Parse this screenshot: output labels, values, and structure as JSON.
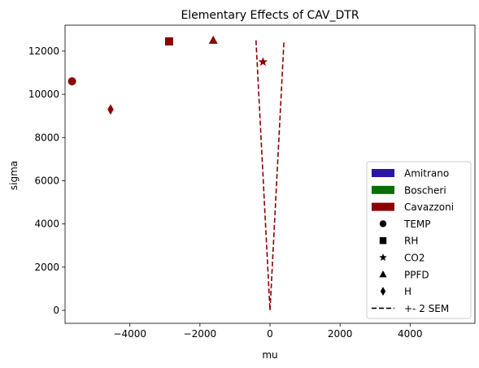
{
  "chart_data": {
    "type": "scatter",
    "title": "Elementary Effects of CAV_DTR",
    "xlabel": "mu",
    "ylabel": "sigma",
    "xlim": [
      -5850,
      5850
    ],
    "ylim": [
      -600,
      13200
    ],
    "xticks": [
      -4000,
      -2000,
      0,
      2000,
      4000
    ],
    "xtick_labels": [
      "−4000",
      "−2000",
      "0",
      "2000",
      "4000"
    ],
    "yticks": [
      0,
      2000,
      4000,
      6000,
      8000,
      10000,
      12000
    ],
    "ytick_labels": [
      "0",
      "2000",
      "4000",
      "6000",
      "8000",
      "10000",
      "12000"
    ],
    "grid": false,
    "color": "#8b0000",
    "points": [
      {
        "name": "TEMP",
        "marker": "circle",
        "x": -5650,
        "y": 10600
      },
      {
        "name": "RH",
        "marker": "square",
        "x": -2880,
        "y": 12450
      },
      {
        "name": "CO2",
        "marker": "star",
        "x": -200,
        "y": 11500
      },
      {
        "name": "PPFD",
        "marker": "triangle",
        "x": -1620,
        "y": 12500
      },
      {
        "name": "H",
        "marker": "diamond",
        "x": -4550,
        "y": 9300
      }
    ],
    "sem_line": {
      "name": "+- 2 SEM",
      "top_y": 12500,
      "half_width_at_top": 400,
      "apex": [
        0,
        0
      ]
    },
    "legend": {
      "placement": "lower-right",
      "patches": [
        {
          "label": "Amitrano",
          "color": "#2a16a0"
        },
        {
          "label": "Boscheri",
          "color": "#007000"
        },
        {
          "label": "Cavazzoni",
          "color": "#8b0000"
        }
      ],
      "markers": [
        {
          "label": "TEMP",
          "marker": "circle"
        },
        {
          "label": "RH",
          "marker": "square"
        },
        {
          "label": "CO2",
          "marker": "star"
        },
        {
          "label": "PPFD",
          "marker": "triangle"
        },
        {
          "label": "H",
          "marker": "diamond"
        }
      ],
      "line_label": "+- 2 SEM"
    }
  }
}
